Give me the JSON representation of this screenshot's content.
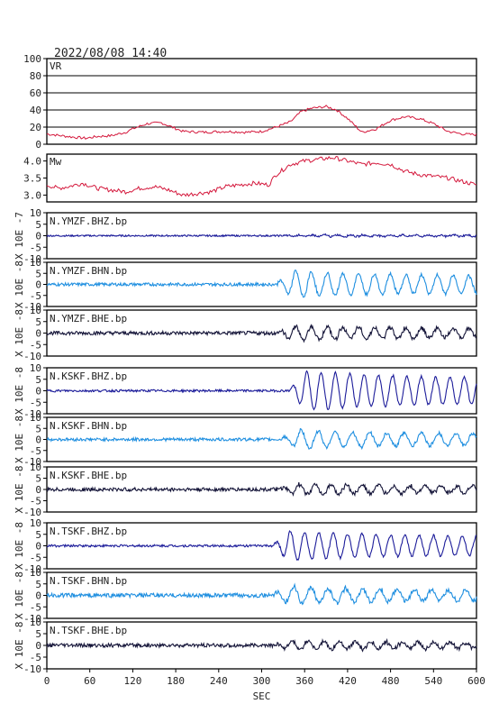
{
  "header": {
    "timestamp": "2022/08/08 14:40"
  },
  "colors": {
    "frame": "#000000",
    "vr": "#d4183c",
    "mw": "#d4183c",
    "bhz": "#1c1c9a",
    "bhn": "#1f8fe0",
    "bhe": "#141438",
    "text": "#222222"
  },
  "chart_data": {
    "type": "line",
    "xlabel": "SEC",
    "xlim": [
      0,
      600
    ],
    "xticks": [
      0,
      60,
      120,
      180,
      240,
      300,
      360,
      420,
      480,
      540,
      600
    ],
    "panels": [
      {
        "name": "VR",
        "label": "VR",
        "ylim": [
          0,
          100
        ],
        "yticks": [
          0,
          20,
          40,
          60,
          80,
          100
        ],
        "grid": true,
        "color_key": "vr",
        "points": [
          [
            0,
            12
          ],
          [
            20,
            10
          ],
          [
            40,
            8
          ],
          [
            55,
            7
          ],
          [
            70,
            9
          ],
          [
            90,
            10
          ],
          [
            110,
            14
          ],
          [
            120,
            18
          ],
          [
            140,
            24
          ],
          [
            160,
            25
          ],
          [
            175,
            20
          ],
          [
            190,
            15
          ],
          [
            220,
            14
          ],
          [
            250,
            15
          ],
          [
            280,
            14
          ],
          [
            300,
            15
          ],
          [
            320,
            20
          ],
          [
            340,
            26
          ],
          [
            355,
            38
          ],
          [
            370,
            42
          ],
          [
            390,
            44
          ],
          [
            405,
            40
          ],
          [
            420,
            30
          ],
          [
            440,
            14
          ],
          [
            460,
            18
          ],
          [
            480,
            28
          ],
          [
            500,
            32
          ],
          [
            520,
            30
          ],
          [
            540,
            24
          ],
          [
            560,
            15
          ],
          [
            580,
            12
          ],
          [
            600,
            11
          ]
        ]
      },
      {
        "name": "Mw",
        "label": "Mw",
        "ylim": [
          2.8,
          4.2
        ],
        "yticks": [
          3.0,
          3.5,
          4.0
        ],
        "ytick_labels": [
          "3.0",
          "3.5",
          "4.0"
        ],
        "grid": false,
        "color_key": "mw",
        "points": [
          [
            0,
            3.3
          ],
          [
            15,
            3.2
          ],
          [
            30,
            3.25
          ],
          [
            50,
            3.35
          ],
          [
            70,
            3.2
          ],
          [
            90,
            3.15
          ],
          [
            110,
            3.1
          ],
          [
            130,
            3.2
          ],
          [
            150,
            3.25
          ],
          [
            170,
            3.15
          ],
          [
            190,
            3.0
          ],
          [
            210,
            3.05
          ],
          [
            230,
            3.1
          ],
          [
            250,
            3.25
          ],
          [
            270,
            3.3
          ],
          [
            290,
            3.35
          ],
          [
            310,
            3.3
          ],
          [
            320,
            3.6
          ],
          [
            340,
            3.9
          ],
          [
            360,
            4.0
          ],
          [
            380,
            4.05
          ],
          [
            400,
            4.1
          ],
          [
            420,
            4.0
          ],
          [
            440,
            3.9
          ],
          [
            460,
            3.95
          ],
          [
            480,
            3.9
          ],
          [
            500,
            3.7
          ],
          [
            520,
            3.6
          ],
          [
            540,
            3.55
          ],
          [
            560,
            3.5
          ],
          [
            580,
            3.4
          ],
          [
            600,
            3.3
          ]
        ]
      }
    ],
    "traces": [
      {
        "label": "N.YMZF.BHZ.bp",
        "unit": "X 10E -7",
        "ylim": [
          -10,
          10
        ],
        "yticks": [
          -10,
          -5,
          0,
          5,
          10
        ],
        "color_key": "bhz",
        "onset": 330,
        "peak": 0.5,
        "noise": 0.35,
        "period": 18
      },
      {
        "label": "N.YMZF.BHN.bp",
        "unit": "X 10E -8",
        "ylim": [
          -10,
          10
        ],
        "yticks": [
          -10,
          -5,
          0,
          5,
          10
        ],
        "color_key": "bhn",
        "onset": 320,
        "peak": 6.5,
        "noise": 0.7,
        "period": 22
      },
      {
        "label": "N.YMZF.BHE.bp",
        "unit": "X 10E -8",
        "ylim": [
          -10,
          10
        ],
        "yticks": [
          -10,
          -5,
          0,
          5,
          10
        ],
        "color_key": "bhe",
        "onset": 320,
        "peak": 3.5,
        "noise": 0.8,
        "period": 22
      },
      {
        "label": "N.KSKF.BHZ.bp",
        "unit": "X 10E -8",
        "ylim": [
          -10,
          10
        ],
        "yticks": [
          -10,
          -5,
          0,
          5,
          10
        ],
        "color_key": "bhz",
        "onset": 338,
        "peak": 9.5,
        "noise": 0.5,
        "period": 20
      },
      {
        "label": "N.KSKF.BHN.bp",
        "unit": "X 10E -8",
        "ylim": [
          -10,
          10
        ],
        "yticks": [
          -10,
          -5,
          0,
          5,
          10
        ],
        "color_key": "bhn",
        "onset": 325,
        "peak": 4.5,
        "noise": 0.7,
        "period": 24
      },
      {
        "label": "N.KSKF.BHE.bp",
        "unit": "X 10E -8",
        "ylim": [
          -10,
          10
        ],
        "yticks": [
          -10,
          -5,
          0,
          5,
          10
        ],
        "color_key": "bhe",
        "onset": 325,
        "peak": 2.5,
        "noise": 0.8,
        "period": 22
      },
      {
        "label": "N.TSKF.BHZ.bp",
        "unit": "X 10E -8",
        "ylim": [
          -10,
          10
        ],
        "yticks": [
          -10,
          -5,
          0,
          5,
          10
        ],
        "color_key": "bhz",
        "onset": 315,
        "peak": 7.0,
        "noise": 0.5,
        "period": 20
      },
      {
        "label": "N.TSKF.BHN.bp",
        "unit": "X 10E -8",
        "ylim": [
          -10,
          10
        ],
        "yticks": [
          -10,
          -5,
          0,
          5,
          10
        ],
        "color_key": "bhn",
        "onset": 315,
        "peak": 4.0,
        "noise": 0.9,
        "period": 24
      },
      {
        "label": "N.TSKF.BHE.bp",
        "unit": "X 10E -8",
        "ylim": [
          -10,
          10
        ],
        "yticks": [
          -10,
          -5,
          0,
          5,
          10
        ],
        "color_key": "bhe",
        "onset": 315,
        "peak": 2.0,
        "noise": 0.8,
        "period": 22
      }
    ]
  }
}
